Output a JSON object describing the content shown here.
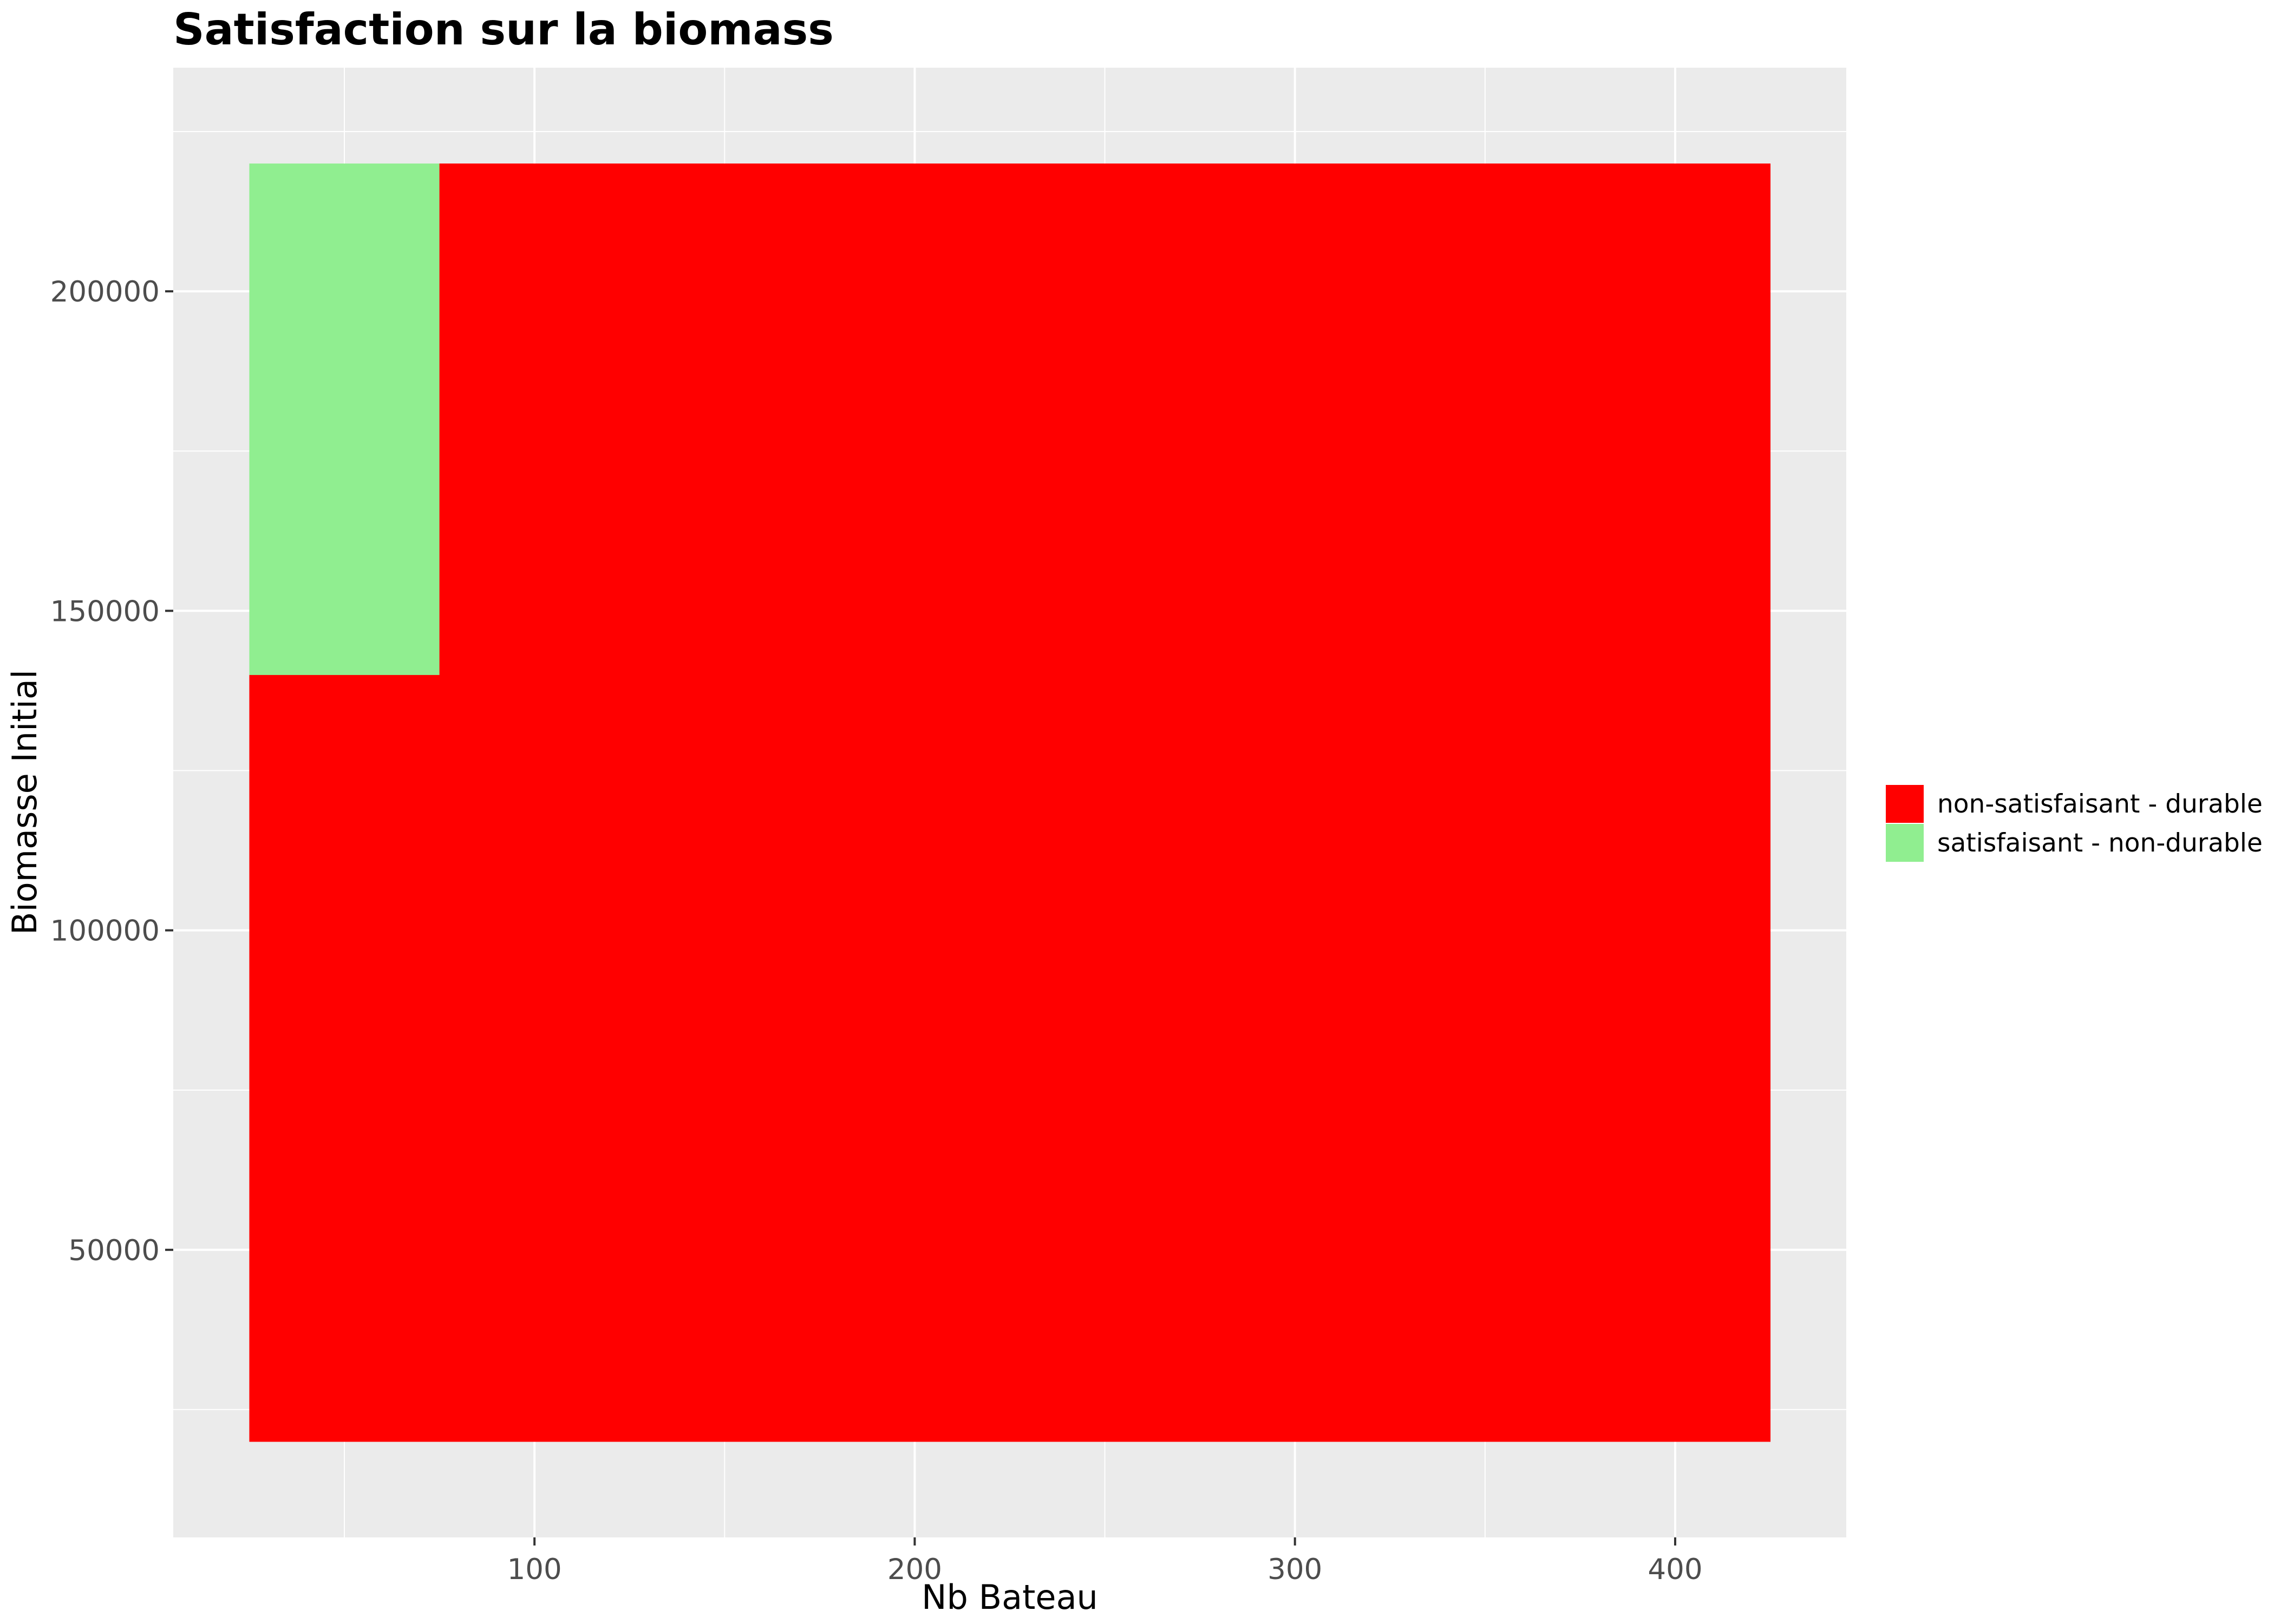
{
  "chart_data": {
    "type": "heatmap",
    "title": "Satisfaction sur la biomass",
    "xlabel": "Nb Bateau",
    "ylabel": "Biomasse Initial",
    "xlim": [
      5,
      445
    ],
    "ylim": [
      5000,
      235000
    ],
    "x_ticks": [
      100,
      200,
      300,
      400
    ],
    "y_ticks": [
      50000,
      100000,
      150000,
      200000
    ],
    "x_tick_labels": [
      "100",
      "200",
      "300",
      "400"
    ],
    "y_tick_labels": [
      "50000",
      "100000",
      "150000",
      "200000"
    ],
    "grid": true,
    "legend_position": "right",
    "categories": [
      {
        "name": "non-satisfaisant - durable",
        "color": "#ff0000"
      },
      {
        "name": "satisfaisant - non-durable",
        "color": "#90ee90"
      }
    ],
    "tiles": [
      {
        "x": [
          25,
          75
        ],
        "y": [
          20000,
          140000
        ],
        "category": "non-satisfaisant - durable"
      },
      {
        "x": [
          25,
          75
        ],
        "y": [
          140000,
          220000
        ],
        "category": "satisfaisant - non-durable"
      },
      {
        "x": [
          75,
          425
        ],
        "y": [
          20000,
          220000
        ],
        "category": "non-satisfaisant - durable"
      }
    ]
  }
}
